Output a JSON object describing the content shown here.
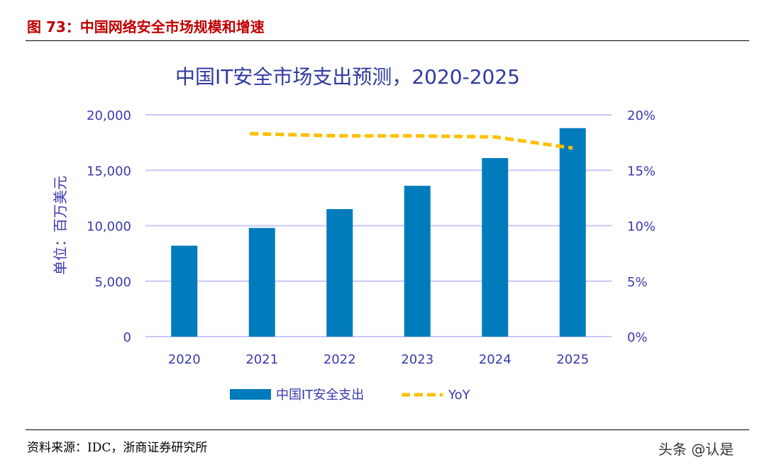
{
  "figure_title": "图 73：中国网络安全市场规模和增速",
  "source": "资料来源：IDC，浙商证券研究所",
  "watermark": "头条 @认是",
  "colors": {
    "bar": "#007bbb",
    "line": "#ffc000",
    "grid": "#c8c8f8",
    "axis_text": "#3a3ab0",
    "title": "#2f3a9f"
  },
  "chart_data": {
    "type": "bar",
    "title": "中国IT安全市场支出预测，2020-2025",
    "ylabel": "单位：百万美元",
    "categories": [
      "2020",
      "2021",
      "2022",
      "2023",
      "2024",
      "2025"
    ],
    "ylim": [
      0,
      20000
    ],
    "y_ticks": [
      "0",
      "5,000",
      "10,000",
      "15,000",
      "20,000"
    ],
    "y2lim": [
      0,
      20
    ],
    "y2_ticks": [
      "0%",
      "5%",
      "10%",
      "15%",
      "20%"
    ],
    "grid": true,
    "legend_position": "bottom",
    "series": [
      {
        "name": "中国IT安全支出",
        "type": "bar",
        "axis": "left",
        "values": [
          8200,
          9800,
          11500,
          13600,
          16100,
          18800
        ]
      },
      {
        "name": "YoY",
        "type": "line",
        "style": "dashed",
        "axis": "right",
        "values": [
          null,
          18.3,
          18.1,
          18.1,
          18.0,
          17.0
        ]
      }
    ]
  }
}
